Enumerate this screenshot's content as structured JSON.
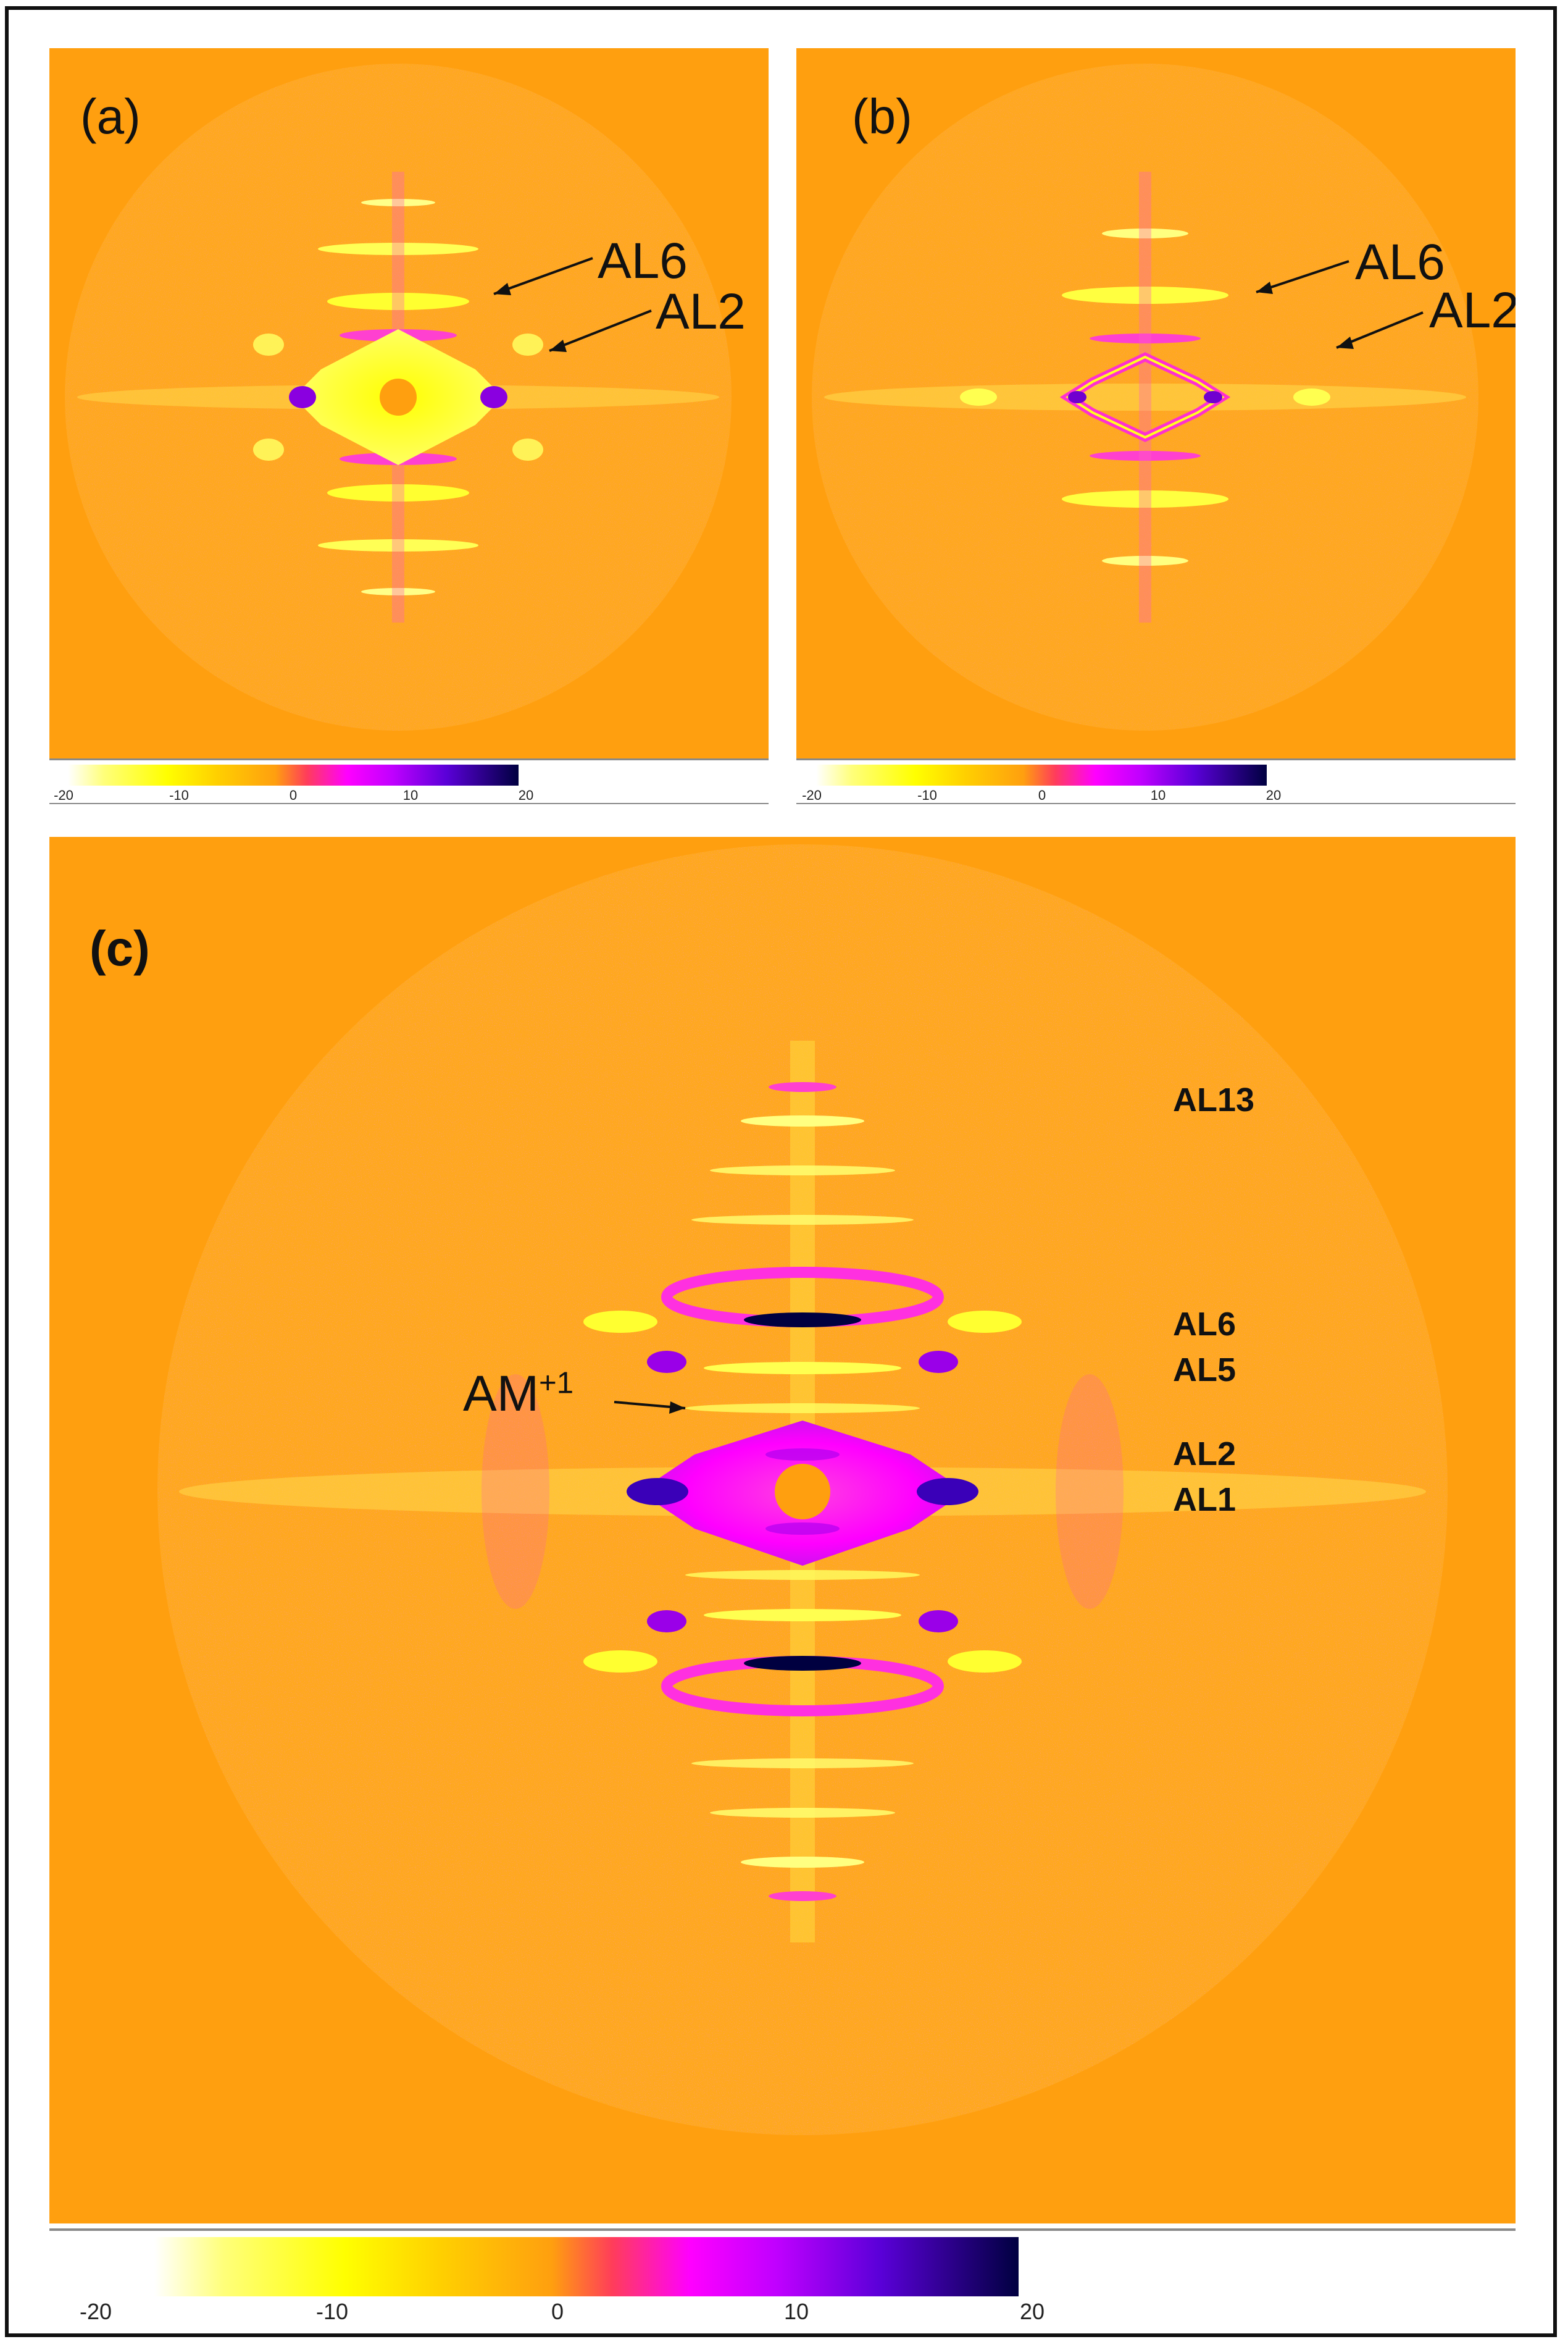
{
  "colors": {
    "background": "#FF9F0F",
    "frame": "#111111",
    "ring_pink": "#FF3DD0",
    "streak_yellow": "#FFFF00",
    "strong_purple": "#6A00D0",
    "darkest_blue": "#000040"
  },
  "panels": {
    "a": {
      "label": "(a)",
      "annotations": [
        "AL6",
        "AL2"
      ]
    },
    "b": {
      "label": "(b)",
      "annotations": [
        "AL6",
        "AL2"
      ]
    },
    "c": {
      "label": "(c)",
      "annotations": [
        "AL13",
        "AL6",
        "AL5",
        "AL2",
        "AL1"
      ],
      "arrow_label": {
        "base": "AM",
        "sup": "+1"
      }
    }
  },
  "colorbar_small": {
    "ticks": [
      "-20",
      "-10",
      "0",
      "10",
      "20"
    ]
  },
  "colorbar_large": {
    "ticks": [
      "-20",
      "-10",
      "0",
      "10",
      "20"
    ]
  }
}
